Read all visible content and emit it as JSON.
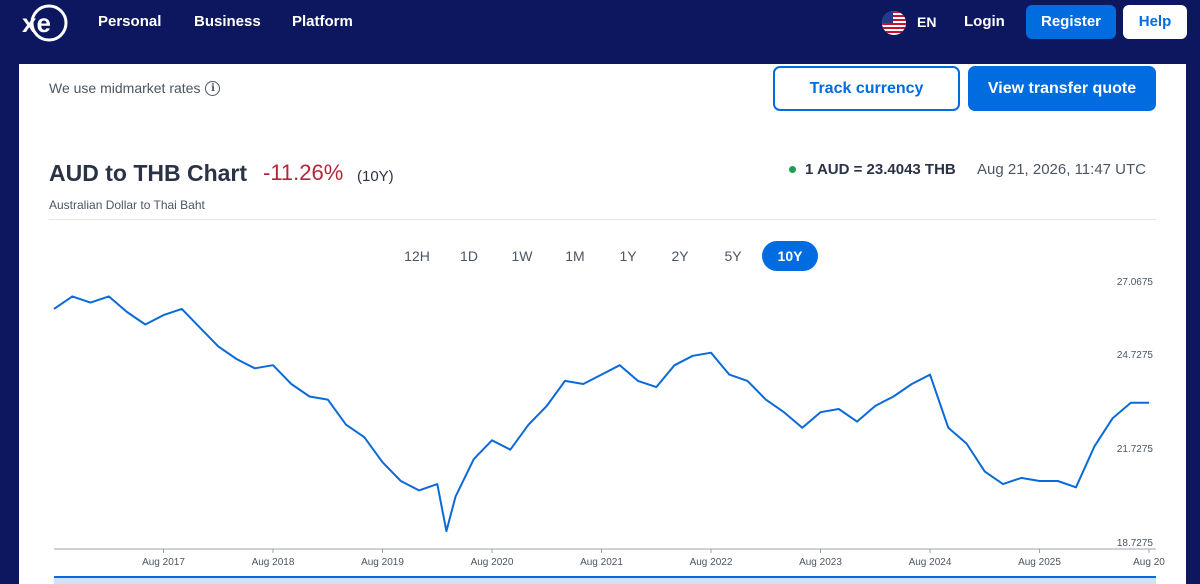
{
  "nav": {
    "logo": "xe",
    "links": [
      "Personal",
      "Business",
      "Platform"
    ],
    "language": "EN",
    "login": "Login",
    "register": "Register",
    "help": "Help"
  },
  "notice": {
    "text": "We use midmarket rates",
    "info_icon": "i"
  },
  "actions": {
    "track": "Track currency",
    "quote": "View transfer quote"
  },
  "chart_header": {
    "title": "AUD to THB Chart",
    "change": "-11.26%",
    "period": "(10Y)",
    "subtitle": "Australian Dollar to Thai Baht",
    "rate": "1 AUD = 23.4043 THB",
    "timestamp": "Aug 21, 2026, 11:47 UTC"
  },
  "range_tabs": [
    "12H",
    "1D",
    "1W",
    "1M",
    "1Y",
    "2Y",
    "5Y",
    "10Y"
  ],
  "active_range": "10Y",
  "colors": {
    "nav_bg": "#0d1760",
    "accent": "#006ce0",
    "negative": "#b3273a",
    "live_dot": "#1f9d55",
    "line": "#0a6ad8"
  },
  "chart_data": {
    "type": "line",
    "title": "",
    "xlabel": "",
    "ylabel": "",
    "x_ticks": [
      "Aug 2017",
      "Aug 2018",
      "Aug 2019",
      "Aug 2020",
      "Aug 2021",
      "Aug 2022",
      "Aug 2023",
      "Aug 2024",
      "Aug 2025",
      "Aug 20"
    ],
    "y_ticks": [
      "27.0675",
      "24.7275",
      "21.7275",
      "18.7275"
    ],
    "ylim": [
      18.7275,
      27.0675
    ],
    "grid": false,
    "series": [
      {
        "x": [
          "2016-08",
          "2016-10",
          "2016-12",
          "2017-02",
          "2017-04",
          "2017-06",
          "2017-08",
          "2017-10",
          "2017-12",
          "2018-02",
          "2018-04",
          "2018-06",
          "2018-08",
          "2018-10",
          "2018-12",
          "2019-02",
          "2019-04",
          "2019-06",
          "2019-08",
          "2019-10",
          "2019-12",
          "2020-02",
          "2020-03",
          "2020-04",
          "2020-06",
          "2020-08",
          "2020-10",
          "2020-12",
          "2021-02",
          "2021-04",
          "2021-06",
          "2021-08",
          "2021-10",
          "2021-12",
          "2022-02",
          "2022-04",
          "2022-06",
          "2022-08",
          "2022-10",
          "2022-12",
          "2023-02",
          "2023-04",
          "2023-06",
          "2023-08",
          "2023-10",
          "2023-12",
          "2024-02",
          "2024-04",
          "2024-06",
          "2024-08",
          "2024-10",
          "2024-12",
          "2025-02",
          "2025-04",
          "2025-06",
          "2025-08",
          "2025-10",
          "2025-12",
          "2026-02",
          "2026-04",
          "2026-06",
          "2026-08"
        ],
        "values": [
          26.4,
          26.8,
          26.6,
          26.8,
          26.3,
          25.9,
          26.2,
          26.4,
          25.8,
          25.2,
          24.8,
          24.5,
          24.6,
          24.0,
          23.6,
          23.5,
          22.7,
          22.3,
          21.5,
          20.9,
          20.6,
          20.8,
          19.3,
          20.4,
          21.6,
          22.2,
          21.9,
          22.7,
          23.3,
          24.1,
          24.0,
          24.3,
          24.6,
          24.1,
          23.9,
          24.6,
          24.9,
          25.0,
          24.3,
          24.1,
          23.5,
          23.1,
          22.6,
          23.1,
          23.2,
          22.8,
          23.3,
          23.6,
          24.0,
          24.3,
          22.6,
          22.1,
          21.2,
          20.8,
          21.0,
          20.9,
          20.9,
          20.7,
          22.0,
          22.9,
          23.4,
          23.4
        ]
      }
    ]
  }
}
